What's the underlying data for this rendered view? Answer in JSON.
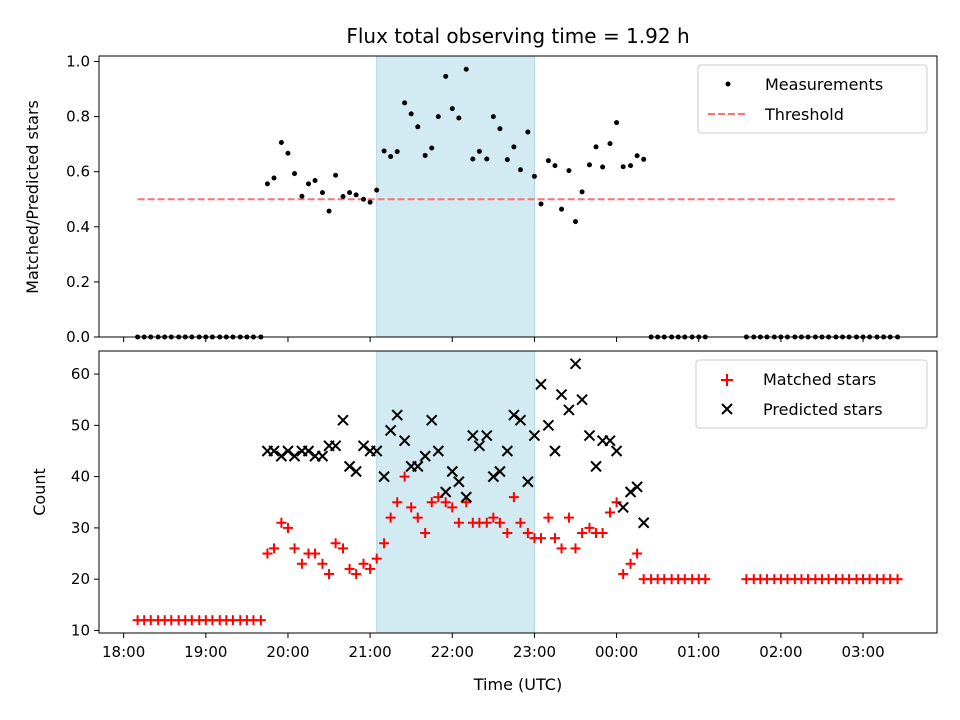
{
  "chart_data": {
    "title": "Flux total observing time = 1.92 h",
    "xlabel": "Time (UTC)",
    "x_ticks": [
      {
        "value": 18,
        "label": "18:00"
      },
      {
        "value": 19,
        "label": "19:00"
      },
      {
        "value": 20,
        "label": "20:00"
      },
      {
        "value": 21,
        "label": "21:00"
      },
      {
        "value": 22,
        "label": "22:00"
      },
      {
        "value": 23,
        "label": "23:00"
      },
      {
        "value": 24,
        "label": "00:00"
      },
      {
        "value": 25,
        "label": "01:00"
      },
      {
        "value": 26,
        "label": "02:00"
      },
      {
        "value": 27,
        "label": "03:00"
      }
    ],
    "xlim": [
      17.7,
      27.9
    ],
    "shaded_span": [
      21.08,
      23.0
    ],
    "shaded_color": "#add8e6",
    "top": {
      "type": "scatter",
      "ylabel": "Matched/Predicted stars",
      "ylim": [
        0,
        1.02
      ],
      "y_ticks": [
        0,
        0.2,
        0.4,
        0.6,
        0.8,
        1.0
      ],
      "y_tick_labels": [
        "0.0",
        "0.2",
        "0.4",
        "0.6",
        "0.8",
        "1.0"
      ],
      "legend": [
        "Measurements",
        "Threshold"
      ],
      "legend_position": "top-right",
      "threshold": {
        "value": 0.5,
        "x_range": [
          18.17,
          27.42
        ],
        "color": "#ff7070"
      },
      "measurements": {
        "color": "#000000",
        "x": [
          18.17,
          18.25,
          18.33,
          18.42,
          18.5,
          18.58,
          18.67,
          18.75,
          18.83,
          18.92,
          19.0,
          19.08,
          19.17,
          19.25,
          19.33,
          19.42,
          19.5,
          19.58,
          19.67,
          19.75,
          19.83,
          19.92,
          20.0,
          20.08,
          20.17,
          20.25,
          20.33,
          20.42,
          20.5,
          20.58,
          20.67,
          20.75,
          20.83,
          20.92,
          21.0,
          21.08,
          21.17,
          21.25,
          21.33,
          21.42,
          21.5,
          21.58,
          21.67,
          21.75,
          21.83,
          21.92,
          22.0,
          22.08,
          22.17,
          22.25,
          22.33,
          22.42,
          22.5,
          22.58,
          22.67,
          22.75,
          22.83,
          22.92,
          23.0,
          23.08,
          23.17,
          23.25,
          23.33,
          23.42,
          23.5,
          23.58,
          23.67,
          23.75,
          23.83,
          23.92,
          24.0,
          24.08,
          24.17,
          24.25,
          24.33,
          24.42,
          24.5,
          24.58,
          24.67,
          24.75,
          24.83,
          24.92,
          25.0,
          25.08,
          25.58,
          25.67,
          25.75,
          25.83,
          25.92,
          26.0,
          26.08,
          26.17,
          26.25,
          26.33,
          26.42,
          26.5,
          26.58,
          26.67,
          26.75,
          26.83,
          26.92,
          27.0,
          27.08,
          27.17,
          27.25,
          27.33,
          27.42
        ],
        "y": [
          0,
          0,
          0,
          0,
          0,
          0,
          0,
          0,
          0,
          0,
          0,
          0,
          0,
          0,
          0,
          0,
          0,
          0,
          0,
          0.556,
          0.577,
          0.706,
          0.667,
          0.593,
          0.511,
          0.556,
          0.568,
          0.524,
          0.457,
          0.587,
          0.51,
          0.524,
          0.516,
          0.5,
          0.489,
          0.533,
          0.675,
          0.655,
          0.673,
          0.85,
          0.81,
          0.763,
          0.659,
          0.686,
          0.8,
          0.946,
          0.829,
          0.795,
          0.972,
          0.646,
          0.674,
          0.646,
          0.8,
          0.756,
          0.644,
          0.69,
          0.607,
          0.744,
          0.583,
          0.483,
          0.64,
          0.622,
          0.464,
          0.604,
          0.419,
          0.527,
          0.625,
          0.69,
          0.617,
          0.702,
          0.778,
          0.618,
          0.622,
          0.658,
          0.645,
          0,
          0,
          0,
          0,
          0,
          0,
          0,
          0,
          0,
          0,
          0,
          0,
          0,
          0,
          0,
          0,
          0,
          0,
          0,
          0,
          0,
          0,
          0,
          0,
          0,
          0,
          0,
          0,
          0,
          0,
          0,
          0
        ]
      }
    },
    "bottom": {
      "type": "scatter",
      "ylabel": "Count",
      "ylim": [
        9.5,
        64.5
      ],
      "y_ticks": [
        10,
        20,
        30,
        40,
        50,
        60
      ],
      "y_tick_labels": [
        "10",
        "20",
        "30",
        "40",
        "50",
        "60"
      ],
      "legend": [
        "Matched stars",
        "Predicted stars"
      ],
      "legend_position": "top-right",
      "series": [
        {
          "name": "Matched stars",
          "marker": "+",
          "color": "#ff0000",
          "x": [
            18.17,
            18.25,
            18.33,
            18.42,
            18.5,
            18.58,
            18.67,
            18.75,
            18.83,
            18.92,
            19.0,
            19.08,
            19.17,
            19.25,
            19.33,
            19.42,
            19.5,
            19.58,
            19.67,
            19.75,
            19.83,
            19.92,
            20.0,
            20.08,
            20.17,
            20.25,
            20.33,
            20.42,
            20.5,
            20.58,
            20.67,
            20.75,
            20.83,
            20.92,
            21.0,
            21.08,
            21.17,
            21.25,
            21.33,
            21.42,
            21.5,
            21.58,
            21.67,
            21.75,
            21.83,
            21.92,
            22.0,
            22.08,
            22.17,
            22.25,
            22.33,
            22.42,
            22.5,
            22.58,
            22.67,
            22.75,
            22.83,
            22.92,
            23.0,
            23.08,
            23.17,
            23.25,
            23.33,
            23.42,
            23.5,
            23.58,
            23.67,
            23.75,
            23.83,
            23.92,
            24.0,
            24.08,
            24.17,
            24.25,
            24.33,
            24.42,
            24.5,
            24.58,
            24.67,
            24.75,
            24.83,
            24.92,
            25.0,
            25.08,
            25.58,
            25.67,
            25.75,
            25.83,
            25.92,
            26.0,
            26.08,
            26.17,
            26.25,
            26.33,
            26.42,
            26.5,
            26.58,
            26.67,
            26.75,
            26.83,
            26.92,
            27.0,
            27.08,
            27.17,
            27.25,
            27.33,
            27.42
          ],
          "y": [
            12,
            12,
            12,
            12,
            12,
            12,
            12,
            12,
            12,
            12,
            12,
            12,
            12,
            12,
            12,
            12,
            12,
            12,
            12,
            25,
            26,
            31,
            30,
            26,
            23,
            25,
            25,
            23,
            21,
            27,
            26,
            22,
            21,
            23,
            22,
            24,
            27,
            32,
            35,
            40,
            34,
            32,
            29,
            35,
            36,
            35,
            34,
            31,
            35,
            31,
            31,
            31,
            32,
            31,
            29,
            36,
            31,
            29,
            28,
            28,
            32,
            28,
            26,
            32,
            26,
            29,
            30,
            29,
            29,
            33,
            35,
            21,
            23,
            25,
            20,
            20,
            20,
            20,
            20,
            20,
            20,
            20,
            20,
            20,
            20,
            20,
            20,
            20,
            20,
            20,
            20,
            20,
            20,
            20,
            20,
            20,
            20,
            20,
            20,
            20,
            20,
            20,
            20,
            20,
            20,
            20,
            20
          ]
        },
        {
          "name": "Predicted stars",
          "marker": "x",
          "color": "#000000",
          "x": [
            19.75,
            19.83,
            19.92,
            20.0,
            20.08,
            20.17,
            20.25,
            20.33,
            20.42,
            20.5,
            20.58,
            20.67,
            20.75,
            20.83,
            20.92,
            21.0,
            21.08,
            21.17,
            21.25,
            21.33,
            21.42,
            21.5,
            21.58,
            21.67,
            21.75,
            21.83,
            21.92,
            22.0,
            22.08,
            22.17,
            22.25,
            22.33,
            22.42,
            22.5,
            22.58,
            22.67,
            22.75,
            22.83,
            22.92,
            23.0,
            23.08,
            23.17,
            23.25,
            23.33,
            23.42,
            23.5,
            23.58,
            23.67,
            23.75,
            23.83,
            23.92,
            24.0,
            24.08,
            24.17,
            24.25,
            24.33
          ],
          "y": [
            45,
            45,
            44,
            45,
            44,
            45,
            45,
            44,
            44,
            46,
            46,
            51,
            42,
            41,
            46,
            45,
            45,
            40,
            49,
            52,
            47,
            42,
            42,
            44,
            51,
            45,
            37,
            41,
            39,
            36,
            48,
            46,
            48,
            40,
            41,
            45,
            52,
            51,
            39,
            48,
            58,
            50,
            45,
            56,
            53,
            62,
            55,
            48,
            42,
            47,
            47,
            45,
            34,
            37,
            38,
            31
          ]
        }
      ]
    }
  }
}
